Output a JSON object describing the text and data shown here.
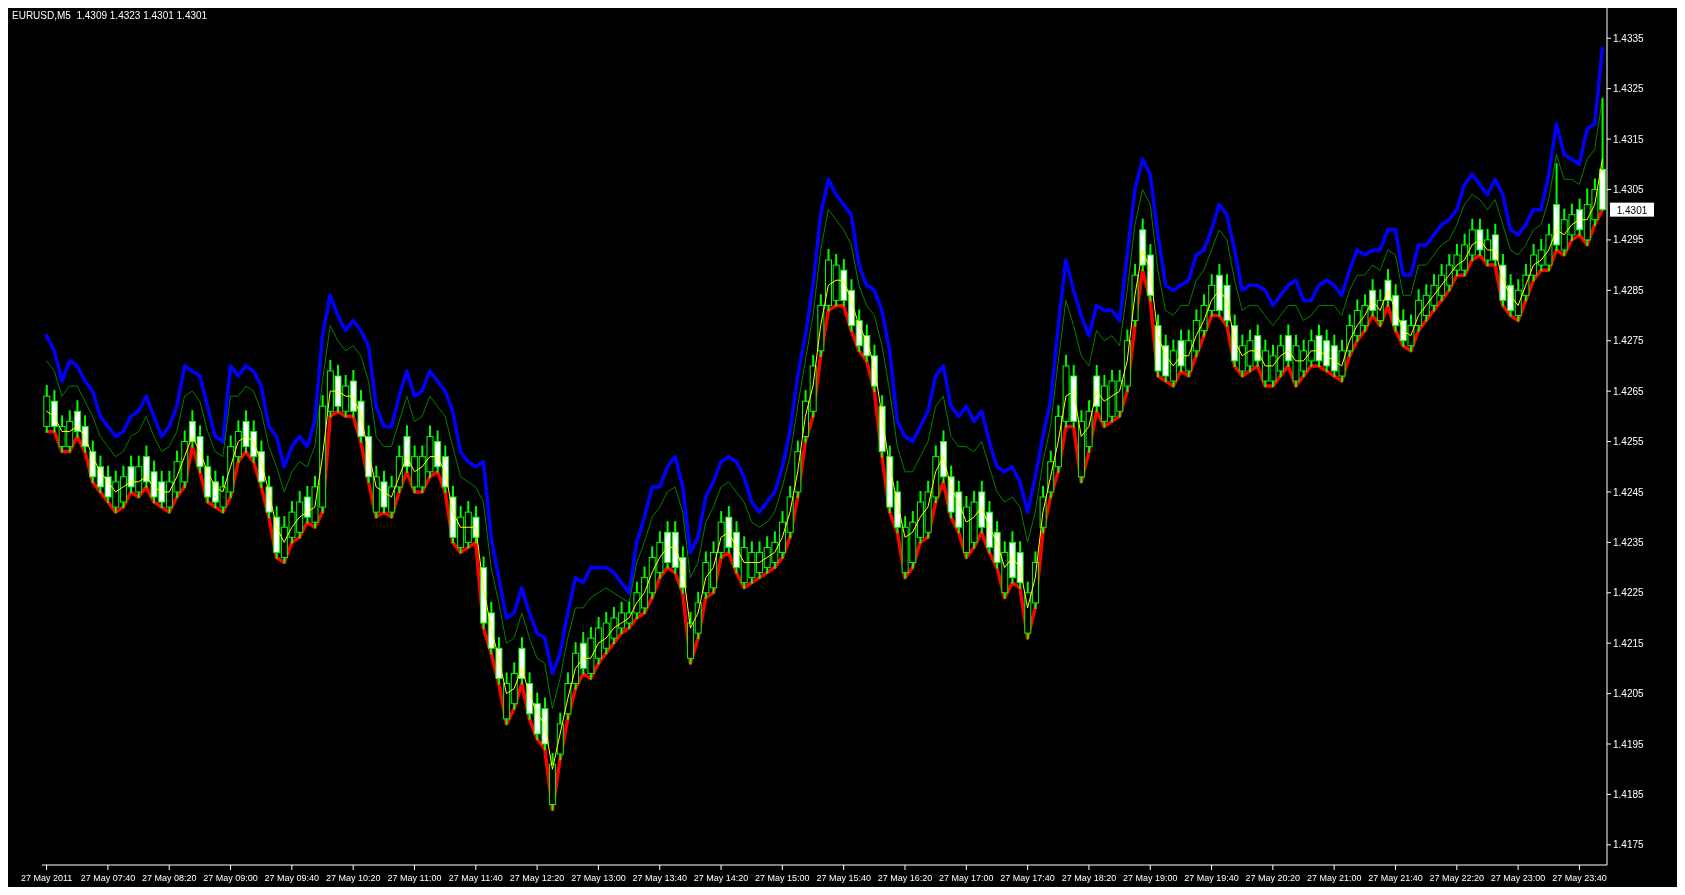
{
  "chart_data": {
    "type": "candlestick",
    "title": "EURUSD,M5  1.4309 1.4323 1.4301 1.4301",
    "color": "#00ff00",
    "x": [
      "2011-05-27T07:00",
      "2011-05-27T07:05",
      "2011-05-27T07:10",
      "2011-05-27T07:15",
      "2011-05-27T07:20",
      "2011-05-27T07:25",
      "2011-05-27T07:30",
      "2011-05-27T07:35",
      "2011-05-27T07:40",
      "2011-05-27T07:45",
      "2011-05-27T07:50",
      "2011-05-27T07:55",
      "2011-05-27T08:00",
      "2011-05-27T08:05",
      "2011-05-27T08:10",
      "2011-05-27T08:15",
      "2011-05-27T08:20",
      "2011-05-27T08:25",
      "2011-05-27T08:30",
      "2011-05-27T08:35",
      "2011-05-27T08:40",
      "2011-05-27T08:45",
      "2011-05-27T08:50",
      "2011-05-27T08:55",
      "2011-05-27T09:00",
      "2011-05-27T09:05",
      "2011-05-27T09:10",
      "2011-05-27T09:15",
      "2011-05-27T09:20",
      "2011-05-27T09:25",
      "2011-05-27T09:30",
      "2011-05-27T09:35",
      "2011-05-27T09:40",
      "2011-05-27T09:45",
      "2011-05-27T09:50",
      "2011-05-27T09:55",
      "2011-05-27T10:00",
      "2011-05-27T10:05",
      "2011-05-27T10:10",
      "2011-05-27T10:15",
      "2011-05-27T10:20",
      "2011-05-27T10:25",
      "2011-05-27T10:30",
      "2011-05-27T10:35",
      "2011-05-27T10:40",
      "2011-05-27T10:45",
      "2011-05-27T10:50",
      "2011-05-27T10:55",
      "2011-05-27T11:00",
      "2011-05-27T11:05",
      "2011-05-27T11:10",
      "2011-05-27T11:15",
      "2011-05-27T11:20",
      "2011-05-27T11:25",
      "2011-05-27T11:30",
      "2011-05-27T11:35",
      "2011-05-27T11:40",
      "2011-05-27T11:45",
      "2011-05-27T11:50",
      "2011-05-27T11:55",
      "2011-05-27T12:00",
      "2011-05-27T12:05",
      "2011-05-27T12:10",
      "2011-05-27T12:15",
      "2011-05-27T12:20",
      "2011-05-27T12:25",
      "2011-05-27T12:30",
      "2011-05-27T12:35",
      "2011-05-27T12:40",
      "2011-05-27T12:45",
      "2011-05-27T12:50",
      "2011-05-27T12:55",
      "2011-05-27T13:00",
      "2011-05-27T13:05",
      "2011-05-27T13:10",
      "2011-05-27T13:15",
      "2011-05-27T13:20",
      "2011-05-27T13:25",
      "2011-05-27T13:30",
      "2011-05-27T13:35",
      "2011-05-27T13:40",
      "2011-05-27T13:45",
      "2011-05-27T13:50",
      "2011-05-27T13:55",
      "2011-05-27T14:00",
      "2011-05-27T14:05",
      "2011-05-27T14:10",
      "2011-05-27T14:15",
      "2011-05-27T14:20",
      "2011-05-27T14:25",
      "2011-05-27T14:30",
      "2011-05-27T14:35",
      "2011-05-27T14:40",
      "2011-05-27T14:45",
      "2011-05-27T14:50",
      "2011-05-27T14:55",
      "2011-05-27T15:00",
      "2011-05-27T15:05",
      "2011-05-27T15:10",
      "2011-05-27T15:15",
      "2011-05-27T15:20",
      "2011-05-27T15:25",
      "2011-05-27T15:30",
      "2011-05-27T15:35",
      "2011-05-27T15:40",
      "2011-05-27T15:45",
      "2011-05-27T15:50",
      "2011-05-27T15:55",
      "2011-05-27T16:00",
      "2011-05-27T16:05",
      "2011-05-27T16:10",
      "2011-05-27T16:15",
      "2011-05-27T16:20",
      "2011-05-27T16:25",
      "2011-05-27T16:30",
      "2011-05-27T16:35",
      "2011-05-27T16:40",
      "2011-05-27T16:45",
      "2011-05-27T16:50",
      "2011-05-27T16:55",
      "2011-05-27T17:00",
      "2011-05-27T17:05",
      "2011-05-27T17:10",
      "2011-05-27T17:15",
      "2011-05-27T17:20",
      "2011-05-27T17:25",
      "2011-05-27T17:30",
      "2011-05-27T17:35",
      "2011-05-27T17:40",
      "2011-05-27T17:45",
      "2011-05-27T17:50",
      "2011-05-27T17:55",
      "2011-05-27T18:00",
      "2011-05-27T18:05",
      "2011-05-27T18:10",
      "2011-05-27T18:15",
      "2011-05-27T18:20",
      "2011-05-27T18:25",
      "2011-05-27T18:30",
      "2011-05-27T18:35",
      "2011-05-27T18:40",
      "2011-05-27T18:45",
      "2011-05-27T18:50",
      "2011-05-27T18:55",
      "2011-05-27T19:00",
      "2011-05-27T19:05",
      "2011-05-27T19:10",
      "2011-05-27T19:15",
      "2011-05-27T19:20",
      "2011-05-27T19:25",
      "2011-05-27T19:30",
      "2011-05-27T19:35",
      "2011-05-27T19:40",
      "2011-05-27T19:45",
      "2011-05-27T19:50",
      "2011-05-27T19:55",
      "2011-05-27T20:00",
      "2011-05-27T20:05",
      "2011-05-27T20:10",
      "2011-05-27T20:15",
      "2011-05-27T20:20",
      "2011-05-27T20:25",
      "2011-05-27T20:30",
      "2011-05-27T20:35",
      "2011-05-27T20:40",
      "2011-05-27T20:45",
      "2011-05-27T20:50",
      "2011-05-27T20:55",
      "2011-05-27T21:00",
      "2011-05-27T21:05",
      "2011-05-27T21:10",
      "2011-05-27T21:15",
      "2011-05-27T21:20",
      "2011-05-27T21:25",
      "2011-05-27T21:30",
      "2011-05-27T21:35",
      "2011-05-27T21:40",
      "2011-05-27T21:45",
      "2011-05-27T21:50",
      "2011-05-27T21:55",
      "2011-05-27T22:00",
      "2011-05-27T22:05",
      "2011-05-27T22:10",
      "2011-05-27T22:15",
      "2011-05-27T22:20",
      "2011-05-27T22:25",
      "2011-05-27T22:30",
      "2011-05-27T22:35",
      "2011-05-27T22:40",
      "2011-05-27T22:45",
      "2011-05-27T22:50",
      "2011-05-27T22:55",
      "2011-05-27T23:00",
      "2011-05-27T23:05",
      "2011-05-27T23:10",
      "2011-05-27T23:15",
      "2011-05-27T23:20",
      "2011-05-27T23:25",
      "2011-05-27T23:30",
      "2011-05-27T23:35",
      "2011-05-27T23:40",
      "2011-05-27T23:45",
      "2011-05-27T23:50",
      "2011-05-27T23:55"
    ],
    "xlim": [
      "2011-05-27T06:57",
      "2011-05-27T23:58"
    ],
    "xticks": [
      {
        "value": "2011-05-27T07:00",
        "label": "27 May 2011"
      },
      {
        "value": "2011-05-27T07:40",
        "label": "27 May 07:40"
      },
      {
        "value": "2011-05-27T08:20",
        "label": "27 May 08:20"
      },
      {
        "value": "2011-05-27T09:00",
        "label": "27 May 09:00"
      },
      {
        "value": "2011-05-27T09:40",
        "label": "27 May 09:40"
      },
      {
        "value": "2011-05-27T10:20",
        "label": "27 May 10:20"
      },
      {
        "value": "2011-05-27T11:00",
        "label": "27 May 11:00"
      },
      {
        "value": "2011-05-27T11:40",
        "label": "27 May 11:40"
      },
      {
        "value": "2011-05-27T12:20",
        "label": "27 May 12:20"
      },
      {
        "value": "2011-05-27T13:00",
        "label": "27 May 13:00"
      },
      {
        "value": "2011-05-27T13:40",
        "label": "27 May 13:40"
      },
      {
        "value": "2011-05-27T14:20",
        "label": "27 May 14:20"
      },
      {
        "value": "2011-05-27T15:00",
        "label": "27 May 15:00"
      },
      {
        "value": "2011-05-27T15:40",
        "label": "27 May 15:40"
      },
      {
        "value": "2011-05-27T16:20",
        "label": "27 May 16:20"
      },
      {
        "value": "2011-05-27T17:00",
        "label": "27 May 17:00"
      },
      {
        "value": "2011-05-27T17:40",
        "label": "27 May 17:40"
      },
      {
        "value": "2011-05-27T18:20",
        "label": "27 May 18:20"
      },
      {
        "value": "2011-05-27T19:00",
        "label": "27 May 19:00"
      },
      {
        "value": "2011-05-27T19:40",
        "label": "27 May 19:40"
      },
      {
        "value": "2011-05-27T20:20",
        "label": "27 May 20:20"
      },
      {
        "value": "2011-05-27T21:00",
        "label": "27 May 21:00"
      },
      {
        "value": "2011-05-27T21:40",
        "label": "27 May 21:40"
      },
      {
        "value": "2011-05-27T22:20",
        "label": "27 May 22:20"
      },
      {
        "value": "2011-05-27T23:00",
        "label": "27 May 23:00"
      },
      {
        "value": "2011-05-27T23:40",
        "label": "27 May 23:40"
      }
    ],
    "ohlc": [
      [
        1.4258,
        1.4266,
        1.4257,
        1.4264
      ],
      [
        1.4263,
        1.4265,
        1.4257,
        1.4258
      ],
      [
        1.4254,
        1.426,
        1.4253,
        1.4258
      ],
      [
        1.4254,
        1.4261,
        1.4253,
        1.4259
      ],
      [
        1.4261,
        1.4263,
        1.4256,
        1.4257
      ],
      [
        1.4258,
        1.426,
        1.4253,
        1.4254
      ],
      [
        1.4253,
        1.4255,
        1.4247,
        1.4248
      ],
      [
        1.425,
        1.4252,
        1.4245,
        1.4246
      ],
      [
        1.4248,
        1.425,
        1.4243,
        1.4244
      ],
      [
        1.4242,
        1.4249,
        1.4241,
        1.4247
      ],
      [
        1.4243,
        1.425,
        1.4242,
        1.4248
      ],
      [
        1.425,
        1.4252,
        1.4245,
        1.4246
      ],
      [
        1.4245,
        1.4252,
        1.4244,
        1.425
      ],
      [
        1.4252,
        1.4254,
        1.4246,
        1.4247
      ],
      [
        1.4249,
        1.4251,
        1.4243,
        1.4244
      ],
      [
        1.4247,
        1.4249,
        1.4242,
        1.4243
      ],
      [
        1.4242,
        1.4249,
        1.4241,
        1.4247
      ],
      [
        1.4245,
        1.4253,
        1.4244,
        1.4251
      ],
      [
        1.4247,
        1.4257,
        1.4246,
        1.4255
      ],
      [
        1.4259,
        1.4261,
        1.4254,
        1.4255
      ],
      [
        1.4256,
        1.4258,
        1.4249,
        1.425
      ],
      [
        1.425,
        1.4252,
        1.4243,
        1.4244
      ],
      [
        1.4247,
        1.4249,
        1.4242,
        1.4243
      ],
      [
        1.4242,
        1.4248,
        1.4241,
        1.4246
      ],
      [
        1.4245,
        1.4256,
        1.4244,
        1.4254
      ],
      [
        1.4252,
        1.4259,
        1.4251,
        1.4257
      ],
      [
        1.4259,
        1.4261,
        1.4253,
        1.4254
      ],
      [
        1.4257,
        1.4259,
        1.4251,
        1.4252
      ],
      [
        1.4253,
        1.4255,
        1.4246,
        1.4247
      ],
      [
        1.4246,
        1.4248,
        1.424,
        1.4241
      ],
      [
        1.424,
        1.4242,
        1.4232,
        1.4233
      ],
      [
        1.4232,
        1.424,
        1.4231,
        1.4238
      ],
      [
        1.4236,
        1.4243,
        1.4235,
        1.4241
      ],
      [
        1.4237,
        1.4245,
        1.4236,
        1.4243
      ],
      [
        1.4244,
        1.4246,
        1.4239,
        1.424
      ],
      [
        1.4239,
        1.4248,
        1.4238,
        1.4246
      ],
      [
        1.4242,
        1.4264,
        1.4241,
        1.4262
      ],
      [
        1.4261,
        1.4271,
        1.426,
        1.4269
      ],
      [
        1.4268,
        1.427,
        1.4261,
        1.4262
      ],
      [
        1.4261,
        1.4268,
        1.426,
        1.4266
      ],
      [
        1.4267,
        1.4269,
        1.426,
        1.4261
      ],
      [
        1.4263,
        1.4265,
        1.4255,
        1.4256
      ],
      [
        1.4256,
        1.4258,
        1.4247,
        1.4248
      ],
      [
        1.4241,
        1.425,
        1.424,
        1.4248
      ],
      [
        1.4247,
        1.4249,
        1.4241,
        1.4242
      ],
      [
        1.4241,
        1.4248,
        1.424,
        1.4246
      ],
      [
        1.4246,
        1.4254,
        1.4245,
        1.4252
      ],
      [
        1.4256,
        1.4258,
        1.4249,
        1.425
      ],
      [
        1.4246,
        1.4254,
        1.4245,
        1.4252
      ],
      [
        1.4246,
        1.4254,
        1.4245,
        1.4252
      ],
      [
        1.4249,
        1.4258,
        1.4248,
        1.4256
      ],
      [
        1.4255,
        1.4257,
        1.4249,
        1.425
      ],
      [
        1.4252,
        1.4254,
        1.4245,
        1.4246
      ],
      [
        1.4244,
        1.4246,
        1.4235,
        1.4236
      ],
      [
        1.4234,
        1.4242,
        1.4233,
        1.424
      ],
      [
        1.4235,
        1.4243,
        1.4234,
        1.4241
      ],
      [
        1.424,
        1.4242,
        1.4235,
        1.4236
      ],
      [
        1.423,
        1.4232,
        1.4218,
        1.4219
      ],
      [
        1.4221,
        1.4223,
        1.4213,
        1.4214
      ],
      [
        1.4214,
        1.4216,
        1.4207,
        1.4208
      ],
      [
        1.42,
        1.4209,
        1.4199,
        1.4207
      ],
      [
        1.4203,
        1.4211,
        1.4202,
        1.4209
      ],
      [
        1.4214,
        1.4216,
        1.4207,
        1.4208
      ],
      [
        1.4207,
        1.4209,
        1.42,
        1.4201
      ],
      [
        1.4203,
        1.4205,
        1.4196,
        1.4197
      ],
      [
        1.4202,
        1.4204,
        1.4194,
        1.4195
      ],
      [
        1.4183,
        1.4193,
        1.4182,
        1.4191
      ],
      [
        1.4193,
        1.4201,
        1.4192,
        1.4199
      ],
      [
        1.4201,
        1.4209,
        1.42,
        1.4207
      ],
      [
        1.4207,
        1.4215,
        1.4206,
        1.4213
      ],
      [
        1.4215,
        1.4217,
        1.4209,
        1.421
      ],
      [
        1.4209,
        1.4218,
        1.4208,
        1.4216
      ],
      [
        1.4212,
        1.422,
        1.4211,
        1.4218
      ],
      [
        1.4214,
        1.4221,
        1.4213,
        1.4219
      ],
      [
        1.4216,
        1.4222,
        1.4215,
        1.422
      ],
      [
        1.4218,
        1.4223,
        1.4217,
        1.4221
      ],
      [
        1.4219,
        1.4223,
        1.4218,
        1.4221
      ],
      [
        1.4221,
        1.4227,
        1.422,
        1.4225
      ],
      [
        1.4222,
        1.423,
        1.4221,
        1.4228
      ],
      [
        1.4225,
        1.4234,
        1.4224,
        1.4232
      ],
      [
        1.4229,
        1.4237,
        1.4228,
        1.4235
      ],
      [
        1.4237,
        1.4239,
        1.423,
        1.4231
      ],
      [
        1.4237,
        1.4239,
        1.4229,
        1.423
      ],
      [
        1.4232,
        1.4234,
        1.4225,
        1.4226
      ],
      [
        1.4212,
        1.4221,
        1.4211,
        1.4219
      ],
      [
        1.4217,
        1.4225,
        1.4216,
        1.4223
      ],
      [
        1.4225,
        1.4233,
        1.4224,
        1.4231
      ],
      [
        1.4226,
        1.4235,
        1.4225,
        1.4233
      ],
      [
        1.4233,
        1.4241,
        1.4232,
        1.4239
      ],
      [
        1.424,
        1.4242,
        1.4233,
        1.4234
      ],
      [
        1.4237,
        1.4239,
        1.4229,
        1.423
      ],
      [
        1.4227,
        1.4236,
        1.4226,
        1.4234
      ],
      [
        1.4228,
        1.4235,
        1.4227,
        1.4233
      ],
      [
        1.4229,
        1.4235,
        1.4228,
        1.4233
      ],
      [
        1.423,
        1.4236,
        1.4229,
        1.4234
      ],
      [
        1.4231,
        1.4237,
        1.423,
        1.4235
      ],
      [
        1.4233,
        1.4241,
        1.4232,
        1.4239
      ],
      [
        1.4237,
        1.4246,
        1.4236,
        1.4244
      ],
      [
        1.4245,
        1.4255,
        1.4244,
        1.4253
      ],
      [
        1.4256,
        1.4265,
        1.4255,
        1.4263
      ],
      [
        1.4261,
        1.4272,
        1.426,
        1.427
      ],
      [
        1.4273,
        1.4284,
        1.4272,
        1.4282
      ],
      [
        1.4282,
        1.4293,
        1.4281,
        1.4291
      ],
      [
        1.4283,
        1.4292,
        1.4282,
        1.429
      ],
      [
        1.4289,
        1.4291,
        1.4282,
        1.4283
      ],
      [
        1.4285,
        1.4287,
        1.4277,
        1.4278
      ],
      [
        1.4279,
        1.4281,
        1.4273,
        1.4274
      ],
      [
        1.4276,
        1.4278,
        1.4271,
        1.4272
      ],
      [
        1.4272,
        1.4274,
        1.4265,
        1.4266
      ],
      [
        1.4262,
        1.4264,
        1.4252,
        1.4253
      ],
      [
        1.4252,
        1.4254,
        1.4241,
        1.4242
      ],
      [
        1.4245,
        1.4247,
        1.4237,
        1.4238
      ],
      [
        1.4229,
        1.424,
        1.4228,
        1.4238
      ],
      [
        1.4231,
        1.4241,
        1.423,
        1.4239
      ],
      [
        1.4236,
        1.4245,
        1.4235,
        1.4243
      ],
      [
        1.4237,
        1.4247,
        1.4236,
        1.4245
      ],
      [
        1.4244,
        1.4254,
        1.4243,
        1.4252
      ],
      [
        1.4255,
        1.4257,
        1.4247,
        1.4248
      ],
      [
        1.4248,
        1.425,
        1.424,
        1.4241
      ],
      [
        1.4245,
        1.4247,
        1.4237,
        1.4238
      ],
      [
        1.4233,
        1.4244,
        1.4232,
        1.4242
      ],
      [
        1.4235,
        1.4245,
        1.4234,
        1.4243
      ],
      [
        1.4245,
        1.4247,
        1.4237,
        1.4238
      ],
      [
        1.4241,
        1.4243,
        1.4233,
        1.4234
      ],
      [
        1.4237,
        1.4239,
        1.423,
        1.4231
      ],
      [
        1.4225,
        1.4235,
        1.4224,
        1.4233
      ],
      [
        1.4235,
        1.4237,
        1.4227,
        1.4228
      ],
      [
        1.4233,
        1.4235,
        1.4226,
        1.4227
      ],
      [
        1.4217,
        1.4227,
        1.4216,
        1.4225
      ],
      [
        1.4223,
        1.4233,
        1.4222,
        1.4231
      ],
      [
        1.4238,
        1.4246,
        1.4237,
        1.4244
      ],
      [
        1.4245,
        1.4253,
        1.4244,
        1.4251
      ],
      [
        1.425,
        1.4262,
        1.4249,
        1.426
      ],
      [
        1.4259,
        1.4272,
        1.4258,
        1.427
      ],
      [
        1.4268,
        1.427,
        1.4258,
        1.4259
      ],
      [
        1.4248,
        1.4261,
        1.4247,
        1.4259
      ],
      [
        1.4254,
        1.4263,
        1.4253,
        1.4261
      ],
      [
        1.4268,
        1.427,
        1.4261,
        1.4262
      ],
      [
        1.4259,
        1.4268,
        1.4258,
        1.4266
      ],
      [
        1.426,
        1.4269,
        1.4259,
        1.4267
      ],
      [
        1.4261,
        1.4269,
        1.426,
        1.4267
      ],
      [
        1.4266,
        1.4277,
        1.4265,
        1.4275
      ],
      [
        1.4279,
        1.429,
        1.4278,
        1.4288
      ],
      [
        1.4297,
        1.4299,
        1.4289,
        1.429
      ],
      [
        1.4292,
        1.4294,
        1.4283,
        1.4284
      ],
      [
        1.4278,
        1.428,
        1.4268,
        1.4269
      ],
      [
        1.4274,
        1.4276,
        1.4267,
        1.4268
      ],
      [
        1.4267,
        1.4275,
        1.4266,
        1.4273
      ],
      [
        1.4275,
        1.4277,
        1.4269,
        1.427
      ],
      [
        1.4269,
        1.4277,
        1.4268,
        1.4275
      ],
      [
        1.4273,
        1.4281,
        1.4272,
        1.4279
      ],
      [
        1.4277,
        1.4284,
        1.4276,
        1.4282
      ],
      [
        1.4281,
        1.4288,
        1.428,
        1.4286
      ],
      [
        1.4288,
        1.429,
        1.428,
        1.4281
      ],
      [
        1.4286,
        1.4288,
        1.4278,
        1.4279
      ],
      [
        1.4278,
        1.428,
        1.427,
        1.4271
      ],
      [
        1.4269,
        1.4276,
        1.4268,
        1.4274
      ],
      [
        1.427,
        1.4277,
        1.4269,
        1.4275
      ],
      [
        1.4276,
        1.4278,
        1.427,
        1.4271
      ],
      [
        1.4267,
        1.4275,
        1.4266,
        1.4273
      ],
      [
        1.4267,
        1.4274,
        1.4266,
        1.4272
      ],
      [
        1.4269,
        1.4276,
        1.4268,
        1.4274
      ],
      [
        1.4276,
        1.4278,
        1.427,
        1.4271
      ],
      [
        1.4267,
        1.4276,
        1.4266,
        1.4274
      ],
      [
        1.4269,
        1.4275,
        1.4268,
        1.4273
      ],
      [
        1.4271,
        1.4277,
        1.427,
        1.4275
      ],
      [
        1.4276,
        1.4278,
        1.427,
        1.4271
      ],
      [
        1.4275,
        1.4277,
        1.4269,
        1.427
      ],
      [
        1.4274,
        1.4276,
        1.4268,
        1.4269
      ],
      [
        1.4268,
        1.4275,
        1.4267,
        1.4273
      ],
      [
        1.4273,
        1.428,
        1.4272,
        1.4278
      ],
      [
        1.4276,
        1.4283,
        1.4275,
        1.4281
      ],
      [
        1.4278,
        1.4284,
        1.4277,
        1.4282
      ],
      [
        1.4285,
        1.4287,
        1.428,
        1.4281
      ],
      [
        1.4279,
        1.4285,
        1.4278,
        1.4283
      ],
      [
        1.4287,
        1.4289,
        1.4282,
        1.4283
      ],
      [
        1.4284,
        1.4286,
        1.4277,
        1.4278
      ],
      [
        1.4279,
        1.4281,
        1.4274,
        1.4275
      ],
      [
        1.4274,
        1.428,
        1.4273,
        1.4278
      ],
      [
        1.4278,
        1.4285,
        1.4277,
        1.4283
      ],
      [
        1.428,
        1.4286,
        1.4279,
        1.4284
      ],
      [
        1.4282,
        1.4288,
        1.4281,
        1.4286
      ],
      [
        1.4284,
        1.429,
        1.4283,
        1.4288
      ],
      [
        1.4286,
        1.4292,
        1.4285,
        1.429
      ],
      [
        1.4289,
        1.4294,
        1.4288,
        1.4292
      ],
      [
        1.4289,
        1.4296,
        1.4288,
        1.4294
      ],
      [
        1.4292,
        1.4299,
        1.4291,
        1.4297
      ],
      [
        1.4297,
        1.4299,
        1.4292,
        1.4293
      ],
      [
        1.4291,
        1.4297,
        1.429,
        1.4295
      ],
      [
        1.4296,
        1.4298,
        1.429,
        1.4291
      ],
      [
        1.429,
        1.4292,
        1.4282,
        1.4283
      ],
      [
        1.4286,
        1.4288,
        1.428,
        1.4281
      ],
      [
        1.428,
        1.4287,
        1.4279,
        1.4285
      ],
      [
        1.4284,
        1.429,
        1.4283,
        1.4288
      ],
      [
        1.4288,
        1.4294,
        1.4287,
        1.4292
      ],
      [
        1.429,
        1.4295,
        1.4289,
        1.4293
      ],
      [
        1.429,
        1.4298,
        1.4289,
        1.4296
      ],
      [
        1.4302,
        1.431,
        1.4293,
        1.4294
      ],
      [
        1.4293,
        1.4301,
        1.4292,
        1.4299
      ],
      [
        1.4296,
        1.4302,
        1.4295,
        1.43
      ],
      [
        1.4301,
        1.4303,
        1.4296,
        1.4297
      ],
      [
        1.4295,
        1.4305,
        1.4294,
        1.4302
      ],
      [
        1.4299,
        1.4307,
        1.4298,
        1.4305
      ],
      [
        1.4309,
        1.4323,
        1.4301,
        1.4301
      ]
    ],
    "series": [
      {
        "type": "line",
        "color": "#0000ff",
        "values": [
          1.4276,
          1.4273,
          1.4267,
          1.4271,
          1.427,
          1.4267,
          1.4265,
          1.426,
          1.4258,
          1.4256,
          1.4257,
          1.426,
          1.4261,
          1.4264,
          1.426,
          1.4256,
          1.4258,
          1.4262,
          1.427,
          1.4269,
          1.4268,
          1.4262,
          1.4256,
          1.4255,
          1.427,
          1.4268,
          1.427,
          1.4269,
          1.4266,
          1.4258,
          1.4256,
          1.425,
          1.4254,
          1.4256,
          1.4254,
          1.4259,
          1.4276,
          1.4284,
          1.428,
          1.4277,
          1.4279,
          1.4277,
          1.4274,
          1.4262,
          1.4258,
          1.4258,
          1.4264,
          1.4269,
          1.4264,
          1.4265,
          1.4269,
          1.4267,
          1.4265,
          1.4261,
          1.4253,
          1.4251,
          1.425,
          1.4251,
          1.4236,
          1.4228,
          1.422,
          1.4221,
          1.4226,
          1.4221,
          1.4217,
          1.4216,
          1.4209,
          1.4213,
          1.4221,
          1.4228,
          1.4227,
          1.423,
          1.423,
          1.423,
          1.4229,
          1.4227,
          1.4225,
          1.4235,
          1.424,
          1.4246,
          1.4246,
          1.425,
          1.4252,
          1.4246,
          1.4233,
          1.4236,
          1.4244,
          1.4247,
          1.4251,
          1.4252,
          1.4251,
          1.4248,
          1.4243,
          1.4241,
          1.4243,
          1.4245,
          1.425,
          1.4257,
          1.4268,
          1.4276,
          1.4286,
          1.43,
          1.4307,
          1.4304,
          1.4302,
          1.43,
          1.429,
          1.4286,
          1.4285,
          1.4281,
          1.4273,
          1.4259,
          1.4256,
          1.4255,
          1.4258,
          1.4261,
          1.4268,
          1.427,
          1.4262,
          1.426,
          1.4262,
          1.4259,
          1.4261,
          1.4255,
          1.425,
          1.4249,
          1.425,
          1.4247,
          1.4241,
          1.4248,
          1.4256,
          1.4263,
          1.4278,
          1.4291,
          1.4285,
          1.428,
          1.4276,
          1.4282,
          1.4281,
          1.4281,
          1.4279,
          1.4292,
          1.4305,
          1.4311,
          1.4308,
          1.4296,
          1.4286,
          1.4285,
          1.4286,
          1.4287,
          1.4292,
          1.4293,
          1.4297,
          1.4302,
          1.43,
          1.4293,
          1.4285,
          1.4286,
          1.4286,
          1.4285,
          1.4282,
          1.4284,
          1.4286,
          1.4287,
          1.4283,
          1.4283,
          1.4286,
          1.4287,
          1.4286,
          1.4284,
          1.4289,
          1.4293,
          1.4292,
          1.4293,
          1.4293,
          1.4297,
          1.4297,
          1.4288,
          1.4288,
          1.4294,
          1.4294,
          1.4296,
          1.4298,
          1.4299,
          1.4301,
          1.4306,
          1.4308,
          1.4306,
          1.4304,
          1.4307,
          1.4304,
          1.4297,
          1.4296,
          1.4298,
          1.4301,
          1.4301,
          1.4308,
          1.4318,
          1.4312,
          1.4311,
          1.431,
          1.4317,
          1.4318,
          1.4333
        ]
      },
      {
        "type": "line",
        "color": "#ff0000",
        "values": [
          1.4257,
          1.4257,
          1.4253,
          1.4253,
          1.4256,
          1.4253,
          1.4247,
          1.4245,
          1.4243,
          1.4241,
          1.4242,
          1.4245,
          1.4244,
          1.4246,
          1.4243,
          1.4242,
          1.4241,
          1.4244,
          1.4246,
          1.4254,
          1.4249,
          1.4243,
          1.4242,
          1.4241,
          1.4244,
          1.4251,
          1.4253,
          1.4251,
          1.4246,
          1.424,
          1.4232,
          1.4231,
          1.4235,
          1.4236,
          1.4239,
          1.4238,
          1.4241,
          1.426,
          1.4261,
          1.426,
          1.426,
          1.4255,
          1.4247,
          1.424,
          1.4241,
          1.424,
          1.4245,
          1.4249,
          1.4245,
          1.4245,
          1.4248,
          1.4249,
          1.4245,
          1.4235,
          1.4233,
          1.4234,
          1.4235,
          1.4218,
          1.4213,
          1.4207,
          1.4199,
          1.4202,
          1.4207,
          1.42,
          1.4196,
          1.4194,
          1.4182,
          1.4192,
          1.42,
          1.4206,
          1.4209,
          1.4208,
          1.4211,
          1.4213,
          1.4215,
          1.4217,
          1.4218,
          1.422,
          1.4221,
          1.4224,
          1.4228,
          1.423,
          1.4229,
          1.4225,
          1.4211,
          1.4216,
          1.4224,
          1.4225,
          1.4232,
          1.4233,
          1.4229,
          1.4226,
          1.4227,
          1.4228,
          1.4229,
          1.423,
          1.4232,
          1.4236,
          1.4244,
          1.4255,
          1.426,
          1.4272,
          1.4281,
          1.4282,
          1.4282,
          1.4277,
          1.4273,
          1.4271,
          1.4265,
          1.4252,
          1.4241,
          1.4237,
          1.4228,
          1.423,
          1.4235,
          1.4236,
          1.4243,
          1.4247,
          1.424,
          1.4237,
          1.4232,
          1.4234,
          1.4237,
          1.4233,
          1.423,
          1.4224,
          1.4227,
          1.4226,
          1.4216,
          1.4222,
          1.4237,
          1.4244,
          1.4249,
          1.4258,
          1.4258,
          1.4247,
          1.4253,
          1.4261,
          1.4258,
          1.4259,
          1.426,
          1.4265,
          1.4278,
          1.4289,
          1.4283,
          1.4268,
          1.4267,
          1.4266,
          1.4269,
          1.4268,
          1.4272,
          1.4276,
          1.428,
          1.428,
          1.4278,
          1.427,
          1.4268,
          1.4269,
          1.427,
          1.4266,
          1.4266,
          1.4268,
          1.427,
          1.4266,
          1.4268,
          1.427,
          1.427,
          1.4269,
          1.4268,
          1.4267,
          1.4272,
          1.4275,
          1.4277,
          1.428,
          1.4278,
          1.4282,
          1.4277,
          1.4274,
          1.4273,
          1.4277,
          1.4279,
          1.4281,
          1.4283,
          1.4285,
          1.4288,
          1.4288,
          1.4291,
          1.4292,
          1.429,
          1.429,
          1.4282,
          1.428,
          1.4279,
          1.4283,
          1.4287,
          1.4289,
          1.4289,
          1.4293,
          1.4292,
          1.4295,
          1.4296,
          1.4294,
          1.4298,
          1.4301
        ]
      },
      {
        "type": "line",
        "color": "#008000",
        "values": [
          1.4271,
          1.4269,
          1.4264,
          1.4266,
          1.4266,
          1.4263,
          1.426,
          1.4256,
          1.4254,
          1.4252,
          1.4253,
          1.4256,
          1.4257,
          1.426,
          1.4256,
          1.4253,
          1.4254,
          1.4257,
          1.4264,
          1.4265,
          1.4263,
          1.4257,
          1.4253,
          1.4252,
          1.4264,
          1.4264,
          1.4266,
          1.4265,
          1.4261,
          1.4254,
          1.425,
          1.4245,
          1.4249,
          1.4251,
          1.425,
          1.4254,
          1.4267,
          1.4278,
          1.4275,
          1.4273,
          1.4274,
          1.4272,
          1.4267,
          1.4256,
          1.4254,
          1.4254,
          1.4259,
          1.4264,
          1.4259,
          1.426,
          1.4264,
          1.4262,
          1.426,
          1.4254,
          1.4248,
          1.4247,
          1.4246,
          1.4243,
          1.423,
          1.4223,
          1.4215,
          1.4216,
          1.4221,
          1.4216,
          1.4212,
          1.4211,
          1.4202,
          1.4208,
          1.4216,
          1.4222,
          1.4222,
          1.4224,
          1.4225,
          1.4226,
          1.4225,
          1.4224,
          1.4223,
          1.4231,
          1.4235,
          1.424,
          1.4242,
          1.4245,
          1.4246,
          1.4241,
          1.4228,
          1.4231,
          1.4239,
          1.4242,
          1.4246,
          1.4247,
          1.4245,
          1.4243,
          1.4239,
          1.4238,
          1.4239,
          1.4241,
          1.4246,
          1.4252,
          1.4262,
          1.4271,
          1.428,
          1.4293,
          1.4301,
          1.4299,
          1.4297,
          1.4294,
          1.4286,
          1.4282,
          1.428,
          1.4274,
          1.4265,
          1.4254,
          1.4249,
          1.4249,
          1.4252,
          1.4255,
          1.4262,
          1.4264,
          1.4256,
          1.4254,
          1.4254,
          1.4253,
          1.4255,
          1.425,
          1.4245,
          1.4243,
          1.4244,
          1.4242,
          1.4235,
          1.4241,
          1.4251,
          1.4258,
          1.4271,
          1.4283,
          1.4278,
          1.4272,
          1.427,
          1.4277,
          1.4275,
          1.4276,
          1.4274,
          1.4285,
          1.4298,
          1.4305,
          1.4302,
          1.4289,
          1.4281,
          1.428,
          1.4282,
          1.4282,
          1.4287,
          1.4289,
          1.4293,
          1.4297,
          1.4295,
          1.4287,
          1.4281,
          1.4282,
          1.4282,
          1.428,
          1.4278,
          1.428,
          1.4282,
          1.4282,
          1.4279,
          1.428,
          1.4282,
          1.4282,
          1.4282,
          1.428,
          1.4285,
          1.4288,
          1.4288,
          1.429,
          1.4289,
          1.4293,
          1.4292,
          1.4284,
          1.4284,
          1.429,
          1.429,
          1.4292,
          1.4294,
          1.4295,
          1.4298,
          1.4302,
          1.4304,
          1.4303,
          1.4301,
          1.4303,
          1.4298,
          1.4293,
          1.4292,
          1.4294,
          1.4297,
          1.4298,
          1.4303,
          1.4312,
          1.4307,
          1.4307,
          1.4306,
          1.4311,
          1.4313,
          1.4323
        ]
      },
      {
        "type": "line",
        "color": "#ffff00",
        "values": [
          1.4261,
          1.426,
          1.4257,
          1.4257,
          1.4258,
          1.4256,
          1.4252,
          1.4249,
          1.4247,
          1.4245,
          1.4246,
          1.4247,
          1.4247,
          1.4248,
          1.4246,
          1.4245,
          1.4245,
          1.4248,
          1.4252,
          1.4256,
          1.4253,
          1.4249,
          1.4246,
          1.4245,
          1.425,
          1.4255,
          1.4256,
          1.4255,
          1.4251,
          1.4245,
          1.4238,
          1.4235,
          1.4238,
          1.424,
          1.4241,
          1.4242,
          1.4252,
          1.4265,
          1.4265,
          1.4264,
          1.4264,
          1.426,
          1.4253,
          1.4246,
          1.4245,
          1.4244,
          1.4248,
          1.4252,
          1.4249,
          1.425,
          1.4252,
          1.4252,
          1.4249,
          1.4241,
          1.4238,
          1.4238,
          1.4238,
          1.4226,
          1.4218,
          1.4212,
          1.4205,
          1.4206,
          1.421,
          1.4205,
          1.4201,
          1.4199,
          1.419,
          1.4197,
          1.4204,
          1.421,
          1.4212,
          1.4212,
          1.4215,
          1.4216,
          1.4218,
          1.4219,
          1.422,
          1.4223,
          1.4225,
          1.4229,
          1.4232,
          1.4234,
          1.4234,
          1.423,
          1.4218,
          1.4221,
          1.4228,
          1.423,
          1.4236,
          1.4237,
          1.4234,
          1.4231,
          1.4231,
          1.4231,
          1.4232,
          1.4233,
          1.4236,
          1.4241,
          1.4249,
          1.426,
          1.4266,
          1.4278,
          1.4286,
          1.4287,
          1.4287,
          1.4283,
          1.4278,
          1.4275,
          1.427,
          1.426,
          1.425,
          1.4243,
          1.4236,
          1.4237,
          1.424,
          1.4242,
          1.4249,
          1.4252,
          1.4246,
          1.4243,
          1.4239,
          1.424,
          1.4242,
          1.4238,
          1.4235,
          1.423,
          1.4232,
          1.423,
          1.4222,
          1.4228,
          1.4241,
          1.4248,
          1.4255,
          1.4264,
          1.4265,
          1.4256,
          1.4258,
          1.4265,
          1.4263,
          1.4264,
          1.4265,
          1.4271,
          1.4284,
          1.4293,
          1.4289,
          1.4276,
          1.4272,
          1.427,
          1.4272,
          1.4272,
          1.4276,
          1.4279,
          1.4283,
          1.4285,
          1.4283,
          1.4275,
          1.4272,
          1.4273,
          1.4273,
          1.427,
          1.427,
          1.4272,
          1.4273,
          1.4271,
          1.4271,
          1.4273,
          1.4273,
          1.4272,
          1.4271,
          1.427,
          1.4275,
          1.4278,
          1.428,
          1.4283,
          1.4281,
          1.4285,
          1.4281,
          1.4277,
          1.4276,
          1.428,
          1.4282,
          1.4284,
          1.4286,
          1.4288,
          1.429,
          1.4291,
          1.4294,
          1.4295,
          1.4293,
          1.4293,
          1.4287,
          1.4284,
          1.4282,
          1.4286,
          1.429,
          1.4291,
          1.4293,
          1.4297,
          1.4296,
          1.4298,
          1.4299,
          1.4299,
          1.4302,
          1.4311
        ]
      }
    ],
    "ylim": [
      1.4171,
      1.4341
    ],
    "yticks": [
      1.4175,
      1.4185,
      1.4195,
      1.4205,
      1.4215,
      1.4225,
      1.4235,
      1.4245,
      1.4255,
      1.4265,
      1.4275,
      1.4285,
      1.4295,
      1.4305,
      1.4315,
      1.4325,
      1.4335
    ],
    "annotations": [
      "1.4301"
    ]
  }
}
